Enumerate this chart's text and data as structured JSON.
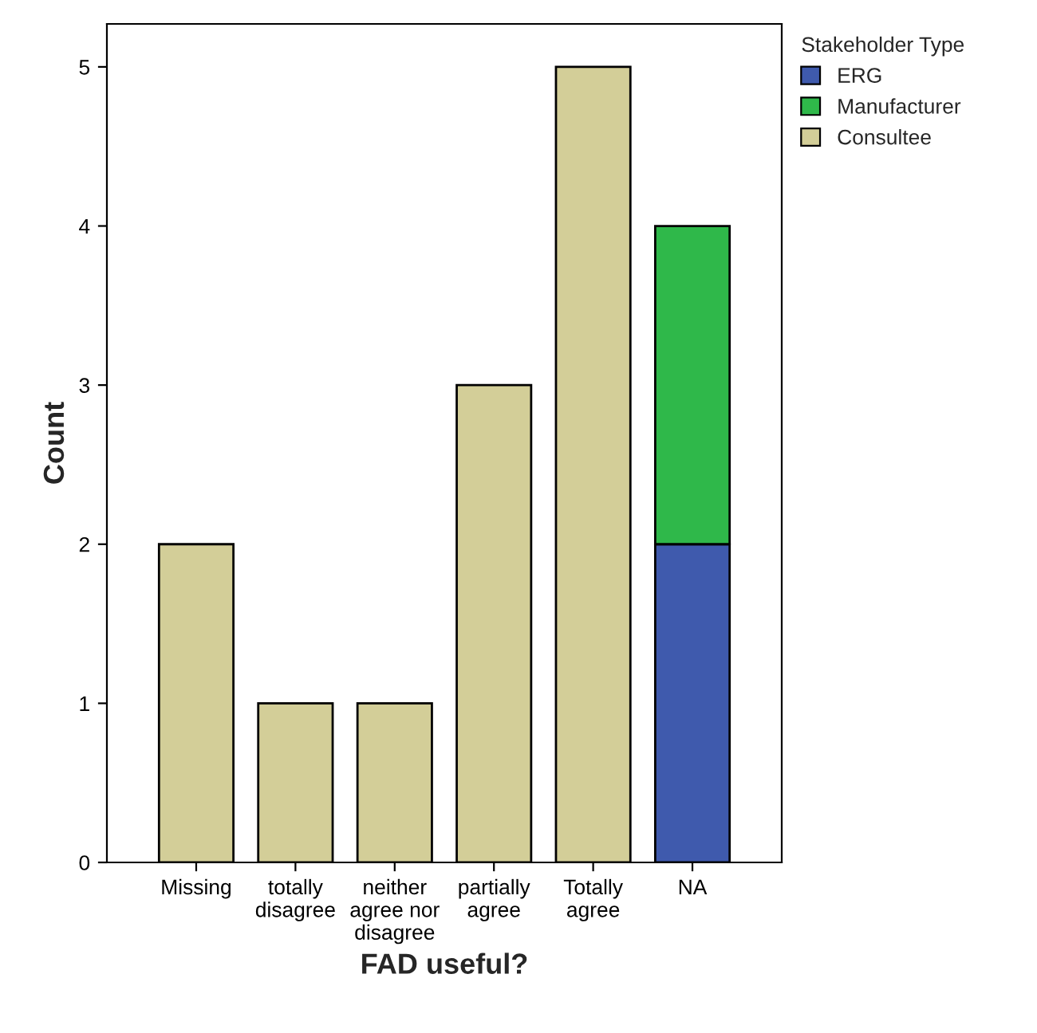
{
  "chart_data": {
    "type": "bar",
    "stacked": true,
    "xlabel": "FAD useful?",
    "ylabel": "Count",
    "legend_title": "Stakeholder Type",
    "categories": [
      "Missing",
      "totally\ndisagree",
      "neither\nagree nor\ndisagree",
      "partially\nagree",
      "Totally\nagree",
      "NA"
    ],
    "series": [
      {
        "name": "ERG",
        "color": "#3f5aad",
        "values": [
          null,
          null,
          null,
          null,
          null,
          2
        ]
      },
      {
        "name": "Manufacturer",
        "color": "#2fb84a",
        "values": [
          null,
          null,
          null,
          null,
          null,
          2
        ]
      },
      {
        "name": "Consultee",
        "color": "#d3ce98",
        "values": [
          2,
          1,
          1,
          3,
          5,
          null
        ]
      }
    ],
    "ylim": [
      0,
      5.27
    ],
    "yticks": [
      0,
      1,
      2,
      3,
      4,
      5
    ],
    "grid": false,
    "legend": "top right"
  }
}
